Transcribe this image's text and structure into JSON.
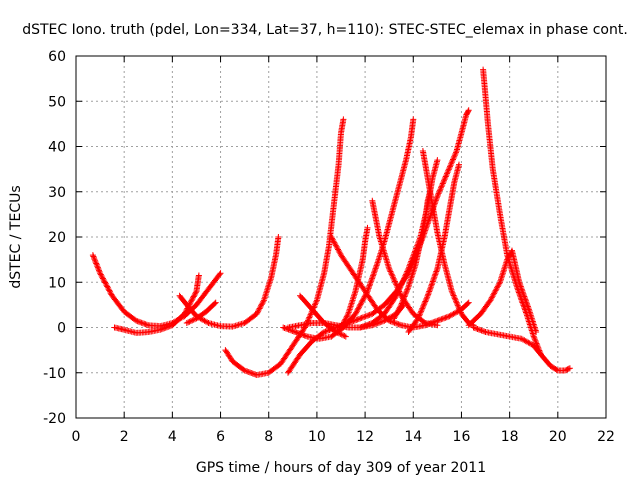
{
  "chart_data": {
    "type": "scatter",
    "title": "dSTEC Iono. truth (pdel, Lon=334, Lat=37, h=110): STEC-STEC_elemax in phase cont.",
    "xlabel": "GPS time / hours of day 309 of year 2011",
    "ylabel": "dSTEC  / TECUs",
    "xlim": [
      0,
      22
    ],
    "ylim": [
      -20,
      60
    ],
    "x_ticks": [
      "0",
      "2",
      "4",
      "6",
      "8",
      "10",
      "12",
      "14",
      "16",
      "18",
      "20",
      "22"
    ],
    "y_ticks": [
      "-20",
      "-10",
      "0",
      "10",
      "20",
      "30",
      "40",
      "50",
      "60"
    ],
    "grid": true,
    "marker": "plus",
    "color": "#ff0000",
    "series": [
      {
        "points": [
          [
            0.7,
            16
          ],
          [
            1.0,
            12
          ],
          [
            1.5,
            7
          ],
          [
            2.0,
            3.5
          ],
          [
            2.5,
            1.5
          ],
          [
            3.0,
            0.5
          ],
          [
            3.5,
            0.3
          ],
          [
            4.0,
            1
          ],
          [
            4.5,
            2.5
          ],
          [
            5.0,
            5
          ],
          [
            5.5,
            8.5
          ],
          [
            6.0,
            12
          ]
        ]
      },
      {
        "points": [
          [
            1.6,
            0
          ],
          [
            2.0,
            -0.5
          ],
          [
            2.5,
            -1.2
          ],
          [
            3.0,
            -1
          ],
          [
            3.5,
            -0.5
          ],
          [
            4.0,
            0.5
          ],
          [
            4.5,
            3
          ],
          [
            4.8,
            6
          ],
          [
            5.0,
            8
          ],
          [
            5.1,
            11.5
          ]
        ]
      },
      {
        "points": [
          [
            4.3,
            7
          ],
          [
            4.6,
            5
          ],
          [
            5.0,
            2.5
          ],
          [
            5.5,
            1
          ],
          [
            6.0,
            0.3
          ],
          [
            6.5,
            0.2
          ],
          [
            7.0,
            1
          ],
          [
            7.5,
            3
          ],
          [
            7.8,
            6
          ],
          [
            8.1,
            11
          ],
          [
            8.3,
            16
          ],
          [
            8.4,
            20
          ]
        ]
      },
      {
        "points": [
          [
            4.6,
            1
          ],
          [
            5.0,
            2
          ],
          [
            5.4,
            3.5
          ],
          [
            5.8,
            5.5
          ]
        ]
      },
      {
        "points": [
          [
            6.2,
            -5
          ],
          [
            6.5,
            -7.5
          ],
          [
            7.0,
            -9.5
          ],
          [
            7.5,
            -10.5
          ],
          [
            8.0,
            -10
          ],
          [
            8.5,
            -8
          ],
          [
            9.0,
            -4
          ],
          [
            9.5,
            0
          ],
          [
            10.0,
            6
          ],
          [
            10.3,
            12
          ],
          [
            10.5,
            18
          ],
          [
            10.7,
            27
          ],
          [
            10.9,
            36
          ],
          [
            11.0,
            43
          ],
          [
            11.1,
            46
          ]
        ]
      },
      {
        "points": [
          [
            8.8,
            -10
          ],
          [
            9.3,
            -6
          ],
          [
            9.8,
            -3
          ],
          [
            10.3,
            -1
          ],
          [
            10.8,
            0
          ],
          [
            11.3,
            1
          ],
          [
            11.8,
            2
          ],
          [
            12.3,
            3
          ],
          [
            12.8,
            5
          ],
          [
            13.3,
            8
          ],
          [
            13.8,
            12
          ],
          [
            14.2,
            17
          ],
          [
            14.6,
            23
          ],
          [
            15.0,
            29
          ],
          [
            15.4,
            34
          ],
          [
            15.8,
            39
          ],
          [
            16.2,
            47
          ],
          [
            16.3,
            48
          ]
        ]
      },
      {
        "points": [
          [
            8.8,
            0
          ],
          [
            9.3,
            0.5
          ],
          [
            9.8,
            1
          ],
          [
            10.3,
            1
          ],
          [
            10.8,
            0.5
          ],
          [
            11.3,
            0
          ],
          [
            11.8,
            0
          ],
          [
            12.3,
            0.5
          ],
          [
            12.8,
            1.5
          ],
          [
            13.3,
            3
          ],
          [
            13.6,
            5
          ]
        ]
      },
      {
        "points": [
          [
            9.3,
            7
          ],
          [
            9.8,
            4
          ],
          [
            10.3,
            1
          ],
          [
            10.8,
            -1
          ],
          [
            11.2,
            -2
          ]
        ]
      },
      {
        "points": [
          [
            8.6,
            0
          ],
          [
            9.1,
            -1
          ],
          [
            9.6,
            -2
          ],
          [
            10.1,
            -2.5
          ],
          [
            10.6,
            -2
          ],
          [
            11.1,
            0
          ],
          [
            11.6,
            3
          ],
          [
            12.1,
            8
          ],
          [
            12.5,
            14
          ],
          [
            12.8,
            19
          ],
          [
            13.1,
            25
          ],
          [
            13.4,
            31
          ],
          [
            13.7,
            37
          ],
          [
            13.9,
            42
          ],
          [
            14.0,
            46
          ]
        ]
      },
      {
        "points": [
          [
            10.6,
            20
          ],
          [
            11.0,
            16
          ],
          [
            11.5,
            12
          ],
          [
            12.0,
            8
          ],
          [
            12.5,
            4
          ],
          [
            13.0,
            1.5
          ],
          [
            13.5,
            0.5
          ],
          [
            14.0,
            0
          ],
          [
            14.5,
            0.5
          ],
          [
            15.0,
            1.5
          ],
          [
            15.5,
            2.5
          ],
          [
            16.0,
            4
          ],
          [
            16.3,
            5.5
          ]
        ]
      },
      {
        "points": [
          [
            11.0,
            0
          ],
          [
            11.3,
            3
          ],
          [
            11.6,
            8
          ],
          [
            11.9,
            15
          ],
          [
            12.0,
            19
          ],
          [
            12.1,
            22
          ]
        ]
      },
      {
        "points": [
          [
            12.3,
            28
          ],
          [
            12.6,
            20
          ],
          [
            13.0,
            13
          ],
          [
            13.5,
            7
          ],
          [
            14.0,
            3
          ],
          [
            14.5,
            1
          ],
          [
            15.0,
            0.5
          ]
        ]
      },
      {
        "points": [
          [
            11.8,
            0
          ],
          [
            12.3,
            1
          ],
          [
            12.8,
            3
          ],
          [
            13.3,
            7
          ],
          [
            13.8,
            13
          ],
          [
            14.3,
            20
          ],
          [
            14.6,
            27
          ],
          [
            14.8,
            33
          ],
          [
            15.0,
            37
          ]
        ]
      },
      {
        "points": [
          [
            13.8,
            -1
          ],
          [
            14.2,
            2
          ],
          [
            14.6,
            7
          ],
          [
            15.0,
            13
          ],
          [
            15.3,
            20
          ],
          [
            15.5,
            26
          ],
          [
            15.7,
            32
          ],
          [
            15.9,
            36
          ]
        ]
      },
      {
        "points": [
          [
            14.4,
            39
          ],
          [
            14.6,
            33
          ],
          [
            14.8,
            27
          ],
          [
            15.0,
            21
          ],
          [
            15.3,
            14
          ],
          [
            15.6,
            8
          ],
          [
            16.0,
            3
          ],
          [
            16.3,
            1
          ],
          [
            16.5,
            0.5
          ]
        ]
      },
      {
        "points": [
          [
            13.2,
            2
          ],
          [
            13.5,
            5
          ],
          [
            13.8,
            9
          ],
          [
            14.1,
            14
          ],
          [
            14.3,
            19
          ],
          [
            14.5,
            24
          ],
          [
            14.6,
            28
          ],
          [
            14.7,
            30
          ]
        ]
      },
      {
        "points": [
          [
            16.9,
            57
          ],
          [
            17.1,
            45
          ],
          [
            17.3,
            35
          ],
          [
            17.6,
            25
          ],
          [
            17.9,
            16
          ],
          [
            18.3,
            9
          ],
          [
            18.7,
            3
          ],
          [
            19.0,
            -2
          ],
          [
            19.3,
            -6
          ],
          [
            19.7,
            -8.5
          ],
          [
            20.0,
            -9.5
          ],
          [
            20.3,
            -9.5
          ],
          [
            20.5,
            -9
          ]
        ]
      },
      {
        "points": [
          [
            16.3,
            0.5
          ],
          [
            16.8,
            3
          ],
          [
            17.2,
            6
          ],
          [
            17.6,
            10
          ],
          [
            17.9,
            15
          ],
          [
            18.1,
            17
          ],
          [
            18.4,
            10
          ],
          [
            18.8,
            4
          ],
          [
            19.1,
            -1
          ]
        ]
      },
      {
        "points": [
          [
            16.5,
            0
          ],
          [
            17.0,
            -1
          ],
          [
            17.5,
            -1.5
          ],
          [
            18.0,
            -2
          ],
          [
            18.5,
            -2.5
          ],
          [
            19.0,
            -4
          ],
          [
            19.3,
            -6
          ]
        ]
      }
    ]
  }
}
